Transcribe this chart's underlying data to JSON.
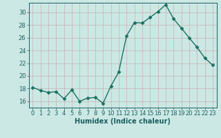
{
  "x": [
    0,
    1,
    2,
    3,
    4,
    5,
    6,
    7,
    8,
    9,
    10,
    11,
    12,
    13,
    14,
    15,
    16,
    17,
    18,
    19,
    20,
    21,
    22,
    23
  ],
  "y": [
    18.2,
    17.7,
    17.4,
    17.5,
    16.4,
    17.8,
    16.0,
    16.5,
    16.6,
    15.7,
    18.4,
    20.6,
    26.3,
    28.4,
    28.3,
    29.2,
    30.1,
    31.2,
    29.0,
    27.5,
    26.0,
    24.5,
    22.8,
    21.7
  ],
  "line_color": "#1a7060",
  "marker": "D",
  "markersize": 2.5,
  "linewidth": 1.0,
  "bg_color": "#cce8e4",
  "grid_color": "#c8b0b0",
  "xlabel": "Humidex (Indice chaleur)",
  "ylim": [
    15.0,
    31.5
  ],
  "xlim": [
    -0.5,
    23.5
  ],
  "yticks": [
    16,
    18,
    20,
    22,
    24,
    26,
    28,
    30
  ],
  "xticks": [
    0,
    1,
    2,
    3,
    4,
    5,
    6,
    7,
    8,
    9,
    10,
    11,
    12,
    13,
    14,
    15,
    16,
    17,
    18,
    19,
    20,
    21,
    22,
    23
  ],
  "xlabel_fontsize": 7.0,
  "tick_fontsize": 6.0,
  "label_color": "#1a6060"
}
